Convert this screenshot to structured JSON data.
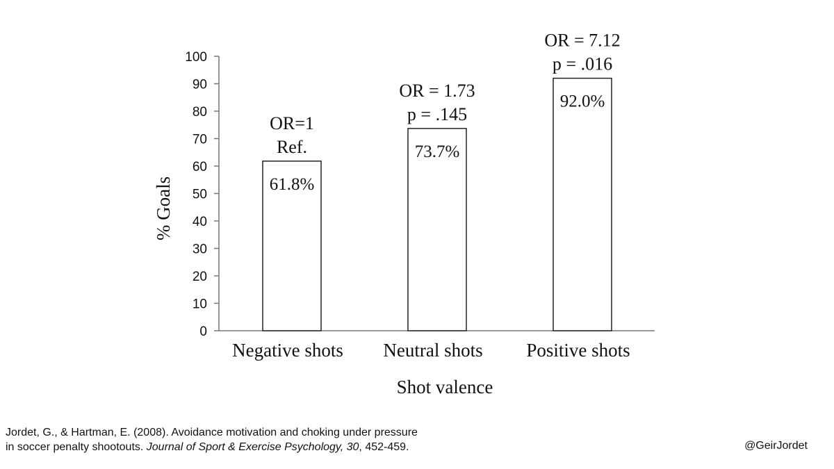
{
  "chart_data": {
    "type": "bar",
    "title": "",
    "xlabel": "Shot valence",
    "ylabel": "% Goals",
    "ylim": [
      0,
      100
    ],
    "yticks": [
      0,
      10,
      20,
      30,
      40,
      50,
      60,
      70,
      80,
      90,
      100
    ],
    "grid": false,
    "categories": [
      "Negative shots",
      "Neutral shots",
      "Positive shots"
    ],
    "values": [
      61.8,
      73.7,
      92.0
    ],
    "value_labels": [
      "61.8%",
      "73.7%",
      "92.0%"
    ],
    "annotations": [
      [
        "OR=1",
        "Ref."
      ],
      [
        "OR = 1.73",
        "p = .145"
      ],
      [
        "OR = 7.12",
        "p = .016"
      ]
    ]
  },
  "citation": {
    "line1": "Jordet, G., & Hartman, E. (2008). Avoidance motivation and choking under pressure",
    "line2_prefix": "in soccer penalty shootouts. ",
    "journal": "Journal of Sport & Exercise Psychology, 30",
    "pages": ", 452-459."
  },
  "handle": "@GeirJordet"
}
